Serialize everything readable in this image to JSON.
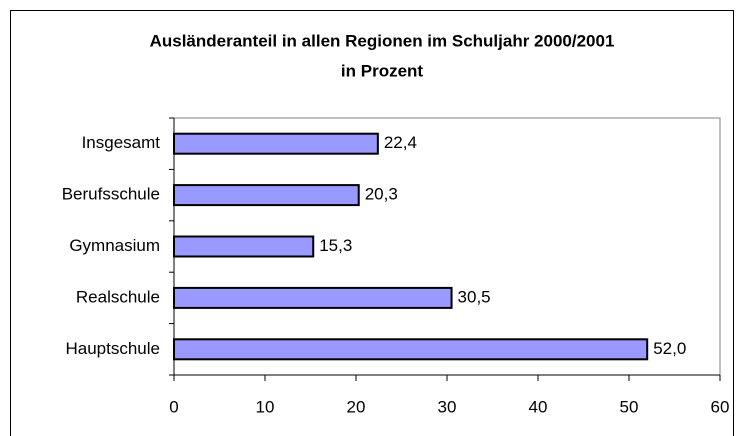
{
  "chart_data": {
    "type": "hbar",
    "title": "Ausländeranteil in allen Regionen im Schuljahr 2000/2001",
    "subtitle": "in Prozent",
    "categories": [
      "Insgesamt",
      "Berufsschule",
      "Gymnasium",
      "Realschule",
      "Hauptschule"
    ],
    "values": [
      22.4,
      20.3,
      15.3,
      30.5,
      52.0
    ],
    "value_labels": [
      "22,4",
      "20,3",
      "15,3",
      "30,5",
      "52,0"
    ],
    "color": "#9999ff",
    "xlim": [
      0,
      60
    ],
    "xticks": [
      0,
      10,
      20,
      30,
      40,
      50,
      60
    ]
  }
}
